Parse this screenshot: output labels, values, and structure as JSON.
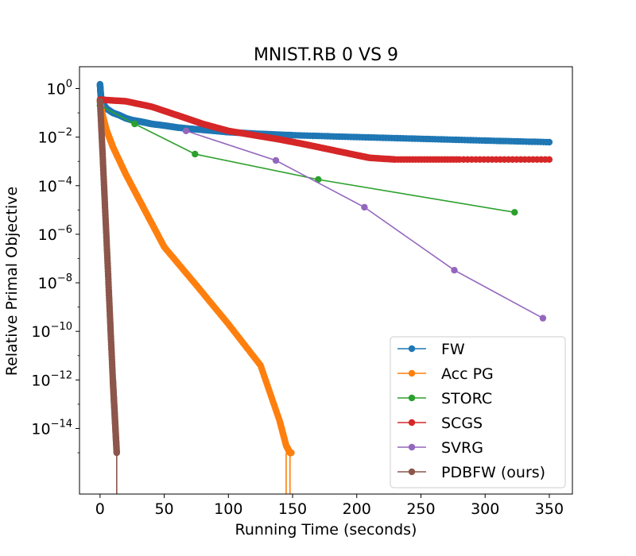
{
  "chart_data": {
    "type": "line",
    "title": "MNIST.RB 0 VS 9",
    "xlabel": "Running Time (seconds)",
    "ylabel": "Relative Primal Objective",
    "x_scale": "linear",
    "y_scale": "log",
    "xlim": [
      -16,
      368
    ],
    "ylim_log10": [
      -16.7,
      0.9
    ],
    "x_ticks": [
      0,
      50,
      100,
      150,
      200,
      250,
      300,
      350
    ],
    "y_ticks": [
      {
        "exp": 0,
        "base": "10",
        "sup": "0"
      },
      {
        "exp": -2,
        "base": "10",
        "sup": "−2"
      },
      {
        "exp": -4,
        "base": "10",
        "sup": "−4"
      },
      {
        "exp": -6,
        "base": "10",
        "sup": "−6"
      },
      {
        "exp": -8,
        "base": "10",
        "sup": "−8"
      },
      {
        "exp": -10,
        "base": "10",
        "sup": "−10"
      },
      {
        "exp": -12,
        "base": "10",
        "sup": "−12"
      },
      {
        "exp": -14,
        "base": "10",
        "sup": "−14"
      }
    ],
    "grid": false,
    "legend_position": "lower-right",
    "series": [
      {
        "name": "FW",
        "color": "#1f77b4",
        "points": [
          [
            0,
            1.5
          ],
          [
            0.5,
            0.6
          ],
          [
            1,
            0.35
          ],
          [
            2,
            0.25
          ],
          [
            5,
            0.15
          ],
          [
            10,
            0.1
          ],
          [
            15,
            0.08
          ],
          [
            20,
            0.06
          ],
          [
            25,
            0.05
          ],
          [
            30,
            0.045
          ],
          [
            35,
            0.04
          ],
          [
            40,
            0.035
          ],
          [
            50,
            0.03
          ],
          [
            60,
            0.025
          ],
          [
            70,
            0.022
          ],
          [
            80,
            0.02
          ],
          [
            90,
            0.018
          ],
          [
            100,
            0.016
          ],
          [
            120,
            0.014
          ],
          [
            150,
            0.012
          ],
          [
            200,
            0.01
          ],
          [
            250,
            0.0085
          ],
          [
            300,
            0.0072
          ],
          [
            350,
            0.0062
          ]
        ],
        "dense_markers": true
      },
      {
        "name": "Acc PG",
        "color": "#ff7f0e",
        "points": [
          [
            0,
            0.3
          ],
          [
            2,
            0.08
          ],
          [
            5,
            0.02
          ],
          [
            10,
            0.004
          ],
          [
            20,
            0.0003
          ],
          [
            30,
            3e-05
          ],
          [
            40,
            3e-06
          ],
          [
            50,
            3e-07
          ],
          [
            75,
            8e-09
          ],
          [
            100,
            2e-10
          ],
          [
            125,
            4e-12
          ],
          [
            140,
            2e-14
          ],
          [
            145,
            2e-15
          ],
          [
            148,
            1e-15
          ],
          [
            149,
            1e-15
          ]
        ],
        "dense_markers": true,
        "drop_to_bottom": [
          145,
          148
        ]
      },
      {
        "name": "STORC",
        "color": "#2ca02c",
        "points": [
          [
            0,
            0.2
          ],
          [
            27,
            0.035
          ],
          [
            74,
            0.002
          ],
          [
            170,
            0.00018
          ],
          [
            323,
            8e-06
          ]
        ],
        "dense_markers": false
      },
      {
        "name": "SCGS",
        "color": "#d62728",
        "points": [
          [
            0,
            0.35
          ],
          [
            20,
            0.3
          ],
          [
            40,
            0.18
          ],
          [
            60,
            0.08
          ],
          [
            80,
            0.035
          ],
          [
            100,
            0.018
          ],
          [
            120,
            0.012
          ],
          [
            140,
            0.008
          ],
          [
            160,
            0.005
          ],
          [
            180,
            0.003
          ],
          [
            200,
            0.0018
          ],
          [
            210,
            0.0014
          ],
          [
            230,
            0.0012
          ],
          [
            280,
            0.0012
          ],
          [
            350,
            0.0012
          ]
        ],
        "dense_markers": true
      },
      {
        "name": "SVRG",
        "color": "#9467bd",
        "points": [
          [
            67,
            0.018
          ],
          [
            137,
            0.0011
          ],
          [
            206,
            1.3e-05
          ],
          [
            276,
            3.3e-08
          ],
          [
            345,
            3.5e-10
          ]
        ],
        "dense_markers": false
      },
      {
        "name": "PDBFW (ours)",
        "color": "#8c564b",
        "points": [
          [
            0,
            0.3
          ],
          [
            2,
            0.002
          ],
          [
            4,
            1e-05
          ],
          [
            6,
            5e-08
          ],
          [
            8,
            2e-10
          ],
          [
            10,
            1e-12
          ],
          [
            11,
            1e-13
          ],
          [
            12,
            1e-14
          ],
          [
            13,
            1e-15
          ]
        ],
        "dense_markers": true,
        "drop_to_bottom": [
          13
        ]
      }
    ]
  }
}
